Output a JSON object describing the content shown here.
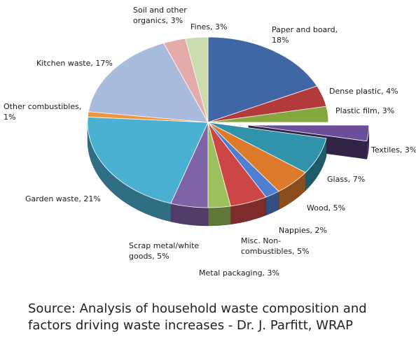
{
  "chart_data": {
    "type": "pie",
    "style": "3d",
    "slices": [
      {
        "label": "Paper and board",
        "value": 18,
        "label_lines": [
          "Paper and board,",
          "18%"
        ],
        "color": "#3f67a6"
      },
      {
        "label": "Dense plastic",
        "value": 4,
        "label_lines": [
          "Dense plastic, 4%"
        ],
        "color": "#b23a3a"
      },
      {
        "label": "Plastic film",
        "value": 3,
        "label_lines": [
          "Plastic film, 3%"
        ],
        "color": "#84a83e"
      },
      {
        "label": "Textiles",
        "value": 3,
        "label_lines": [
          "Textiles, 3%"
        ],
        "color": "#6b4e9b",
        "exploded": true
      },
      {
        "label": "Glass",
        "value": 7,
        "label_lines": [
          "Glass, 7%"
        ],
        "color": "#2f93ab"
      },
      {
        "label": "Wood",
        "value": 5,
        "label_lines": [
          "Wood, 5%"
        ],
        "color": "#de7a2c"
      },
      {
        "label": "Nappies",
        "value": 2,
        "label_lines": [
          "Nappies, 2%"
        ],
        "color": "#4f7fd0"
      },
      {
        "label": "Misc. Non-combustibles",
        "value": 5,
        "label_lines": [
          "Misc. Non-",
          "combustibles, 5%"
        ],
        "color": "#cc4646"
      },
      {
        "label": "Metal packaging",
        "value": 3,
        "label_lines": [
          "Metal packaging, 3%"
        ],
        "color": "#9cc05c"
      },
      {
        "label": "Scrap metal/white goods",
        "value": 5,
        "label_lines": [
          "Scrap metal/white",
          "goods, 5%"
        ],
        "color": "#7f63a8"
      },
      {
        "label": "Garden waste",
        "value": 21,
        "label_lines": [
          "Garden waste, 21%"
        ],
        "color": "#4bb1d3"
      },
      {
        "label": "Other combustibles",
        "value": 1,
        "label_lines": [
          "Other combustibles,",
          "1%"
        ],
        "color": "#f0953a"
      },
      {
        "label": "Kitchen waste",
        "value": 17,
        "label_lines": [
          "Kitchen waste, 17%"
        ],
        "color": "#a9bcdd"
      },
      {
        "label": "Soil and other organics",
        "value": 3,
        "label_lines": [
          "Soil and other",
          "organics, 3%"
        ],
        "color": "#e5abaa"
      },
      {
        "label": "Fines",
        "value": 3,
        "label_lines": [
          "Fines, 3%"
        ],
        "color": "#cbdcae"
      }
    ]
  },
  "source": {
    "line1": "Source: Analysis of household waste composition and",
    "line2": "factors driving waste increases - Dr. J. Parfitt, WRAP"
  }
}
